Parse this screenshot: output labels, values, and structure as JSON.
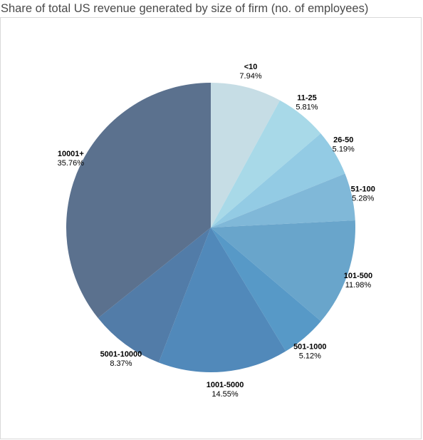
{
  "chart_data": {
    "type": "pie",
    "title": "Share of total US revenue generated by size of firm (no. of employees)",
    "slices": [
      {
        "label": "<10",
        "value": 7.94,
        "value_label": "7.94%",
        "color": "#c6dde5"
      },
      {
        "label": "11-25",
        "value": 5.81,
        "value_label": "5.81%",
        "color": "#a8d9e8"
      },
      {
        "label": "26-50",
        "value": 5.19,
        "value_label": "5.19%",
        "color": "#93cbe4"
      },
      {
        "label": "51-100",
        "value": 5.28,
        "value_label": "5.28%",
        "color": "#80b8d8"
      },
      {
        "label": "101-500",
        "value": 11.98,
        "value_label": "11.98%",
        "color": "#69a5cb"
      },
      {
        "label": "501-1000",
        "value": 5.12,
        "value_label": "5.12%",
        "color": "#5799c7"
      },
      {
        "label": "1001-5000",
        "value": 14.55,
        "value_label": "14.55%",
        "color": "#5189ba"
      },
      {
        "label": "5001-10000",
        "value": 8.37,
        "value_label": "8.37%",
        "color": "#527ca8"
      },
      {
        "label": "10001+",
        "value": 35.76,
        "value_label": "35.76%",
        "color": "#5b718e"
      }
    ]
  }
}
